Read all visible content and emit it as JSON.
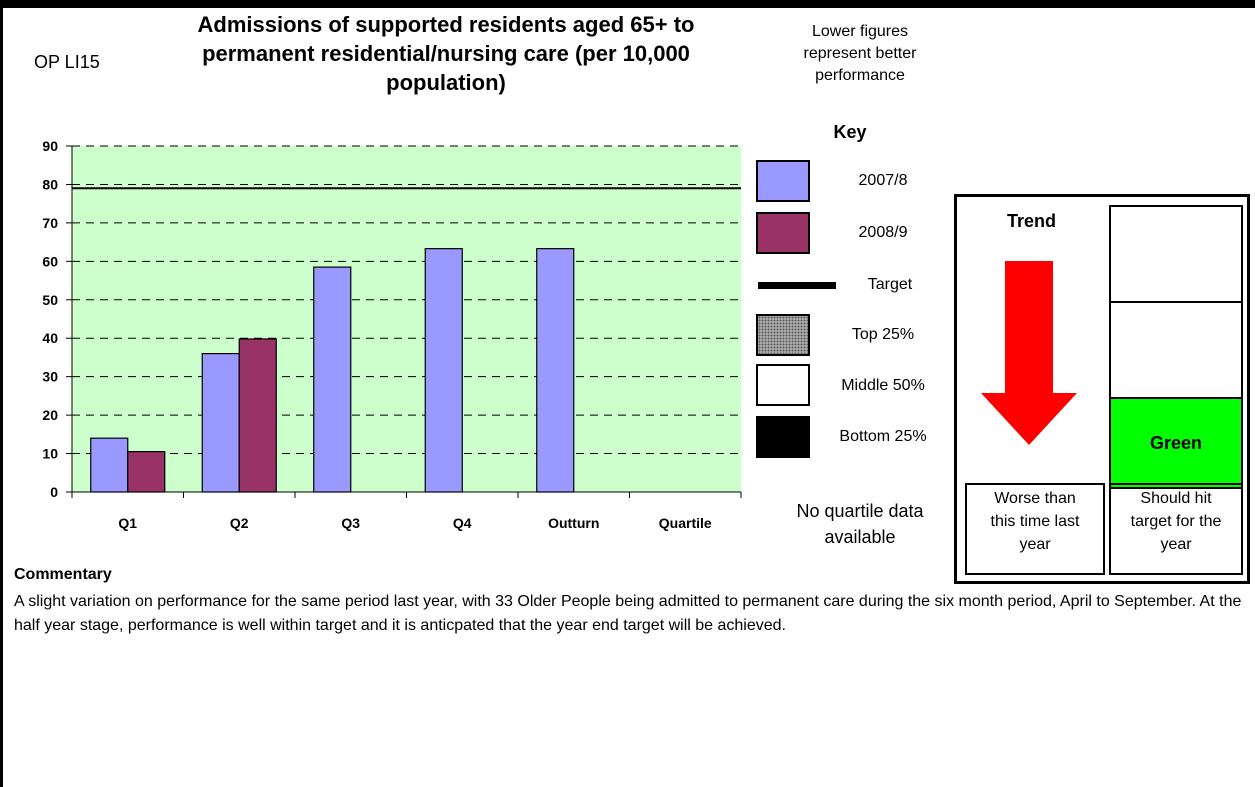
{
  "header": {
    "code": "OP LI15",
    "title_line1": "Admissions of supported residents aged 65+ to",
    "title_line2": "permanent residential/nursing care (per 10,000",
    "title_line3": "population)",
    "note_line1": "Lower figures",
    "note_line2": "represent better",
    "note_line3": "performance"
  },
  "chart_data": {
    "type": "bar",
    "categories": [
      "Q1",
      "Q2",
      "Q3",
      "Q4",
      "Outturn",
      "Quartile"
    ],
    "series": [
      {
        "name": "2007/8",
        "color": "#9999ff",
        "values": [
          14,
          36,
          58.5,
          63.3,
          63.3,
          null
        ]
      },
      {
        "name": "2008/9",
        "color": "#993366",
        "values": [
          10.5,
          39.8,
          null,
          null,
          null,
          null
        ]
      }
    ],
    "target": 79,
    "ylim": [
      0,
      90
    ],
    "yticks": [
      0,
      10,
      20,
      30,
      40,
      50,
      60,
      70,
      80,
      90
    ],
    "plot_background": "#ccffcc",
    "grid": true,
    "legend_position": "right"
  },
  "key": {
    "title": "Key",
    "items": [
      {
        "label": "2007/8",
        "color": "#9999ff"
      },
      {
        "label": "2008/9",
        "color": "#993366"
      },
      {
        "label": "Target"
      },
      {
        "label": "Top 25%"
      },
      {
        "label": "Middle 50%"
      },
      {
        "label": "Bottom 25%"
      }
    ],
    "no_quartile_line1": "No quartile data",
    "no_quartile_line2": "available"
  },
  "status_panel": {
    "trend_label": "Trend",
    "trend_direction": "down",
    "arrow_color": "#ff0000",
    "rag_label": "Green",
    "rag_color": "#00ff00",
    "trend_caption_line1": "Worse than",
    "trend_caption_line2": "this time last",
    "trend_caption_line3": "year",
    "rag_caption_line1": "Should hit",
    "rag_caption_line2": "target for the",
    "rag_caption_line3": "year"
  },
  "commentary": {
    "heading": "Commentary",
    "text": "A slight variation on performance for the same period last year, with 33 Older People being admitted to permanent care during the six month period, April to September.  At the half year stage, performance is well within target and it is anticpated that the year end target will be achieved."
  }
}
